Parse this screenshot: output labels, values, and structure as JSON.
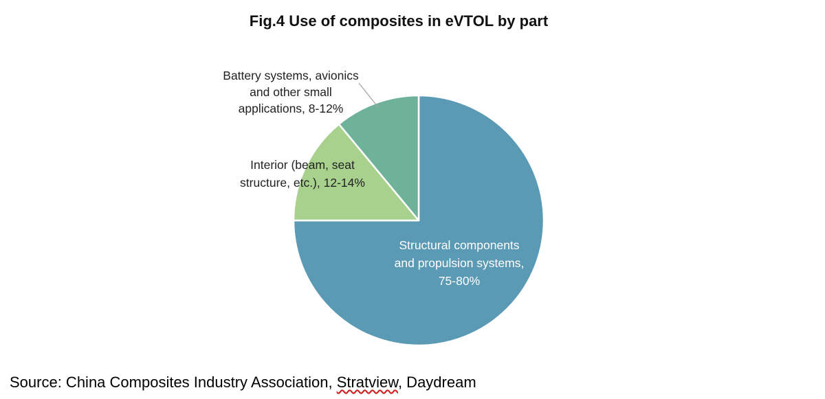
{
  "chart_data": {
    "type": "pie",
    "title": "Fig.4 Use of composites in eVTOL by part",
    "start_angle_deg": 0,
    "direction": "clockwise",
    "slices": [
      {
        "label_lines": [
          "Structural components",
          "and propulsion systems,",
          "75-80%"
        ],
        "value": 75,
        "color": "#5b9ab4",
        "label_color": "#ffffff"
      },
      {
        "label_lines": [
          "Interior (beam, seat",
          "structure, etc.), 12-14%"
        ],
        "value": 14,
        "color": "#a9d18e",
        "label_color": "#222222"
      },
      {
        "label_lines": [
          "Battery systems, avionics",
          "and other small",
          "applications, 8-12%"
        ],
        "value": 11,
        "color": "#6fb29a",
        "label_color": "#222222"
      }
    ]
  },
  "source": {
    "prefix": "Source: China Composites Industry Association, ",
    "underlined": "Stratview",
    "suffix": ", Daydream"
  }
}
